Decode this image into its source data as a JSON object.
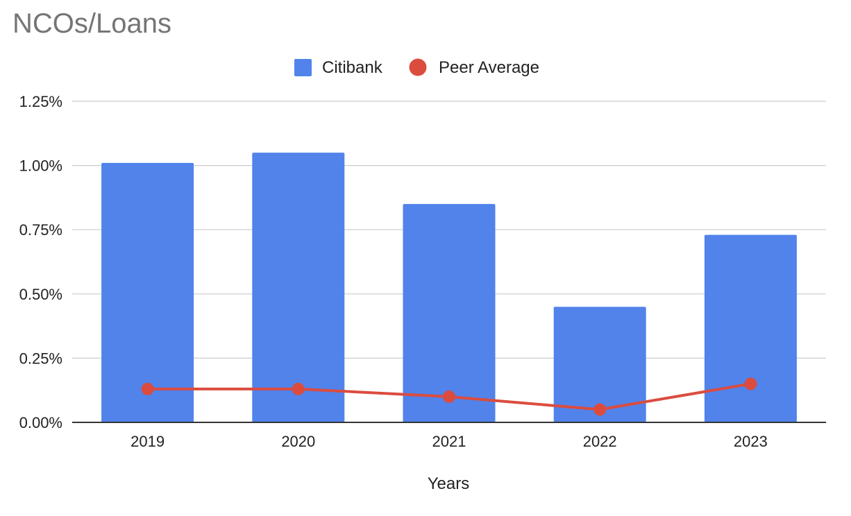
{
  "colors": {
    "series_bar": "#5183EB",
    "series_line": "#DB4C3F",
    "grid": "#CCCCCC",
    "axis": "#333333",
    "title": "#757575",
    "text": "#222222"
  },
  "chart_data": {
    "type": "bar",
    "title": "NCOs/Loans",
    "xlabel": "Years",
    "ylabel": "",
    "categories": [
      "2019",
      "2020",
      "2021",
      "2022",
      "2023"
    ],
    "ylim": [
      0,
      1.25
    ],
    "y_ticks": [
      0,
      0.25,
      0.5,
      0.75,
      1.0,
      1.25
    ],
    "y_tick_labels": [
      "0.00%",
      "0.25%",
      "0.50%",
      "0.75%",
      "1.00%",
      "1.25%"
    ],
    "grid": true,
    "legend_position": "top-center",
    "series": [
      {
        "name": "Citibank",
        "type": "bar",
        "values": [
          1.01,
          1.05,
          0.85,
          0.45,
          0.73
        ]
      },
      {
        "name": "Peer Average",
        "type": "line",
        "values": [
          0.13,
          0.13,
          0.1,
          0.05,
          0.15
        ]
      }
    ]
  }
}
